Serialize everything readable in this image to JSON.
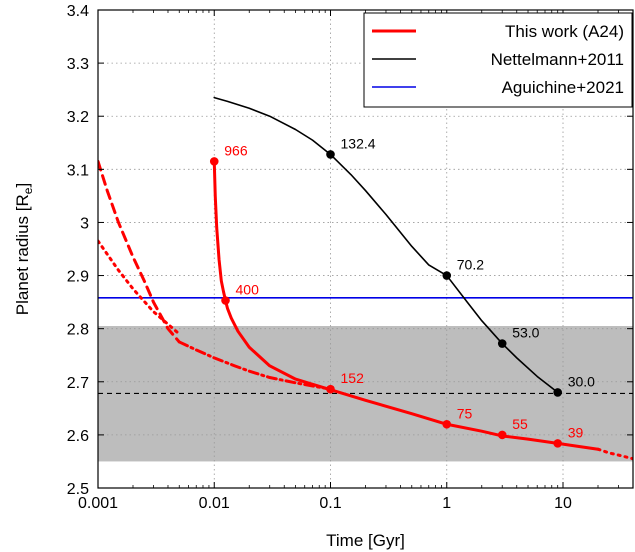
{
  "chart_data": {
    "type": "line",
    "xlabel": "Time [Gyr]",
    "ylabel": "Planet radius [R",
    "ylabel_sub": "e",
    "ylabel_close": "]",
    "x_scale": "log",
    "xlim": [
      0.001,
      40
    ],
    "ylim": [
      2.5,
      3.4
    ],
    "x_ticks": [
      0.001,
      0.01,
      0.1,
      1,
      10
    ],
    "x_tick_labels": [
      "0.001",
      "0.01",
      "0.1",
      "1",
      "10"
    ],
    "y_ticks": [
      2.5,
      2.6,
      2.7,
      2.8,
      2.9,
      3.0,
      3.1,
      3.2,
      3.3,
      3.4
    ],
    "y_tick_labels": [
      "2.5",
      "2.6",
      "2.7",
      "2.8",
      "2.9",
      "3",
      "3.1",
      "3.2",
      "3.3",
      "3.4"
    ],
    "grid": true,
    "legend_position": "top-right",
    "colors": {
      "red": "#ff0000",
      "black": "#000000",
      "blue": "#0000e6",
      "band": "#bdbdbd"
    },
    "band": {
      "y0": 2.55,
      "y1": 2.805
    },
    "hlines": [
      {
        "y": 2.858,
        "color": "#0000e6",
        "style": "solid"
      },
      {
        "y": 2.678,
        "color": "#000000",
        "style": "dashed"
      }
    ],
    "series": [
      {
        "name": "This work (A24)",
        "color": "#ff0000",
        "style": "solid",
        "x": [
          0.01,
          0.0102,
          0.0105,
          0.011,
          0.0115,
          0.012,
          0.0125,
          0.013,
          0.014,
          0.016,
          0.02,
          0.03,
          0.05,
          0.1,
          0.2,
          0.5,
          1,
          2,
          3,
          5,
          9,
          12,
          20
        ],
        "y": [
          3.115,
          3.05,
          2.99,
          2.93,
          2.89,
          2.87,
          2.853,
          2.838,
          2.82,
          2.795,
          2.765,
          2.73,
          2.705,
          2.685,
          2.665,
          2.64,
          2.62,
          2.607,
          2.598,
          2.592,
          2.584,
          2.58,
          2.573
        ]
      },
      {
        "name": "",
        "color": "#ff0000",
        "style": "dotted",
        "x": [
          20,
          25,
          30,
          40
        ],
        "y": [
          2.573,
          2.566,
          2.562,
          2.555
        ]
      },
      {
        "name": "",
        "color": "#ff0000",
        "style": "dashed",
        "x": [
          0.001,
          0.0012,
          0.0015,
          0.002,
          0.0025,
          0.003,
          0.004,
          0.005
        ],
        "y": [
          3.115,
          3.06,
          3.0,
          2.935,
          2.89,
          2.85,
          2.8,
          2.775
        ]
      },
      {
        "name": "",
        "color": "#ff0000",
        "style": "dotted",
        "x": [
          0.001,
          0.0015,
          0.002,
          0.003,
          0.005
        ],
        "y": [
          2.965,
          2.91,
          2.875,
          2.832,
          2.79
        ]
      },
      {
        "name": "",
        "color": "#ff0000",
        "style": "dashdot",
        "x": [
          0.005,
          0.007,
          0.01,
          0.015,
          0.02,
          0.03,
          0.05,
          0.1
        ],
        "y": [
          2.775,
          2.76,
          2.745,
          2.73,
          2.72,
          2.708,
          2.698,
          2.686
        ]
      },
      {
        "name": "Nettelmann+2011",
        "color": "#000000",
        "style": "solid",
        "x": [
          0.01,
          0.013,
          0.02,
          0.03,
          0.05,
          0.07,
          0.1,
          0.15,
          0.2,
          0.3,
          0.5,
          0.7,
          1,
          1.5,
          2,
          3,
          4,
          6,
          9
        ],
        "y": [
          3.235,
          3.228,
          3.215,
          3.2,
          3.175,
          3.155,
          3.128,
          3.09,
          3.06,
          3.015,
          2.955,
          2.92,
          2.9,
          2.85,
          2.815,
          2.772,
          2.745,
          2.71,
          2.68
        ]
      },
      {
        "name": "Aguichine+2021",
        "color": "#0000e6",
        "style": "solid",
        "x": [
          0.001,
          40
        ],
        "y": [
          2.858,
          2.858
        ]
      }
    ],
    "markers": [
      {
        "x": 0.01,
        "y": 3.115,
        "label": "966",
        "color": "#ff0000"
      },
      {
        "x": 0.0125,
        "y": 2.853,
        "label": "400",
        "color": "#ff0000"
      },
      {
        "x": 0.1,
        "y": 2.686,
        "label": "152",
        "color": "#ff0000"
      },
      {
        "x": 1,
        "y": 2.62,
        "label": "75",
        "color": "#ff0000"
      },
      {
        "x": 3,
        "y": 2.6,
        "label": "55",
        "color": "#ff0000"
      },
      {
        "x": 9,
        "y": 2.584,
        "label": "39",
        "color": "#ff0000"
      },
      {
        "x": 0.1,
        "y": 3.128,
        "label": "132.4",
        "color": "#000000"
      },
      {
        "x": 1,
        "y": 2.9,
        "label": "70.2",
        "color": "#000000"
      },
      {
        "x": 3,
        "y": 2.772,
        "label": "53.0",
        "color": "#000000"
      },
      {
        "x": 9,
        "y": 2.68,
        "label": "30.0",
        "color": "#000000"
      }
    ],
    "legend": [
      {
        "label": "This work (A24)",
        "color": "#ff0000"
      },
      {
        "label": "Nettelmann+2011",
        "color": "#000000"
      },
      {
        "label": "Aguichine+2021",
        "color": "#0000e6"
      }
    ]
  }
}
